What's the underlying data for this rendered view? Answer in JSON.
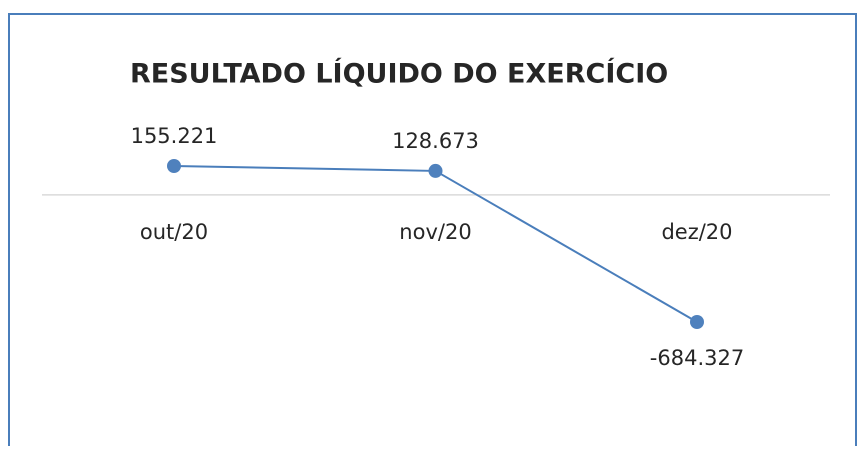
{
  "chart_data": {
    "type": "line",
    "title": "RESULTADO LÍQUIDO DO EXERCÍCIO",
    "categories": [
      "out/20",
      "nov/20",
      "dez/20"
    ],
    "values": [
      155221,
      128673,
      -684327
    ],
    "value_labels": [
      "155.221",
      "128.673",
      "-684.327"
    ],
    "color": "#4a7ebb"
  }
}
